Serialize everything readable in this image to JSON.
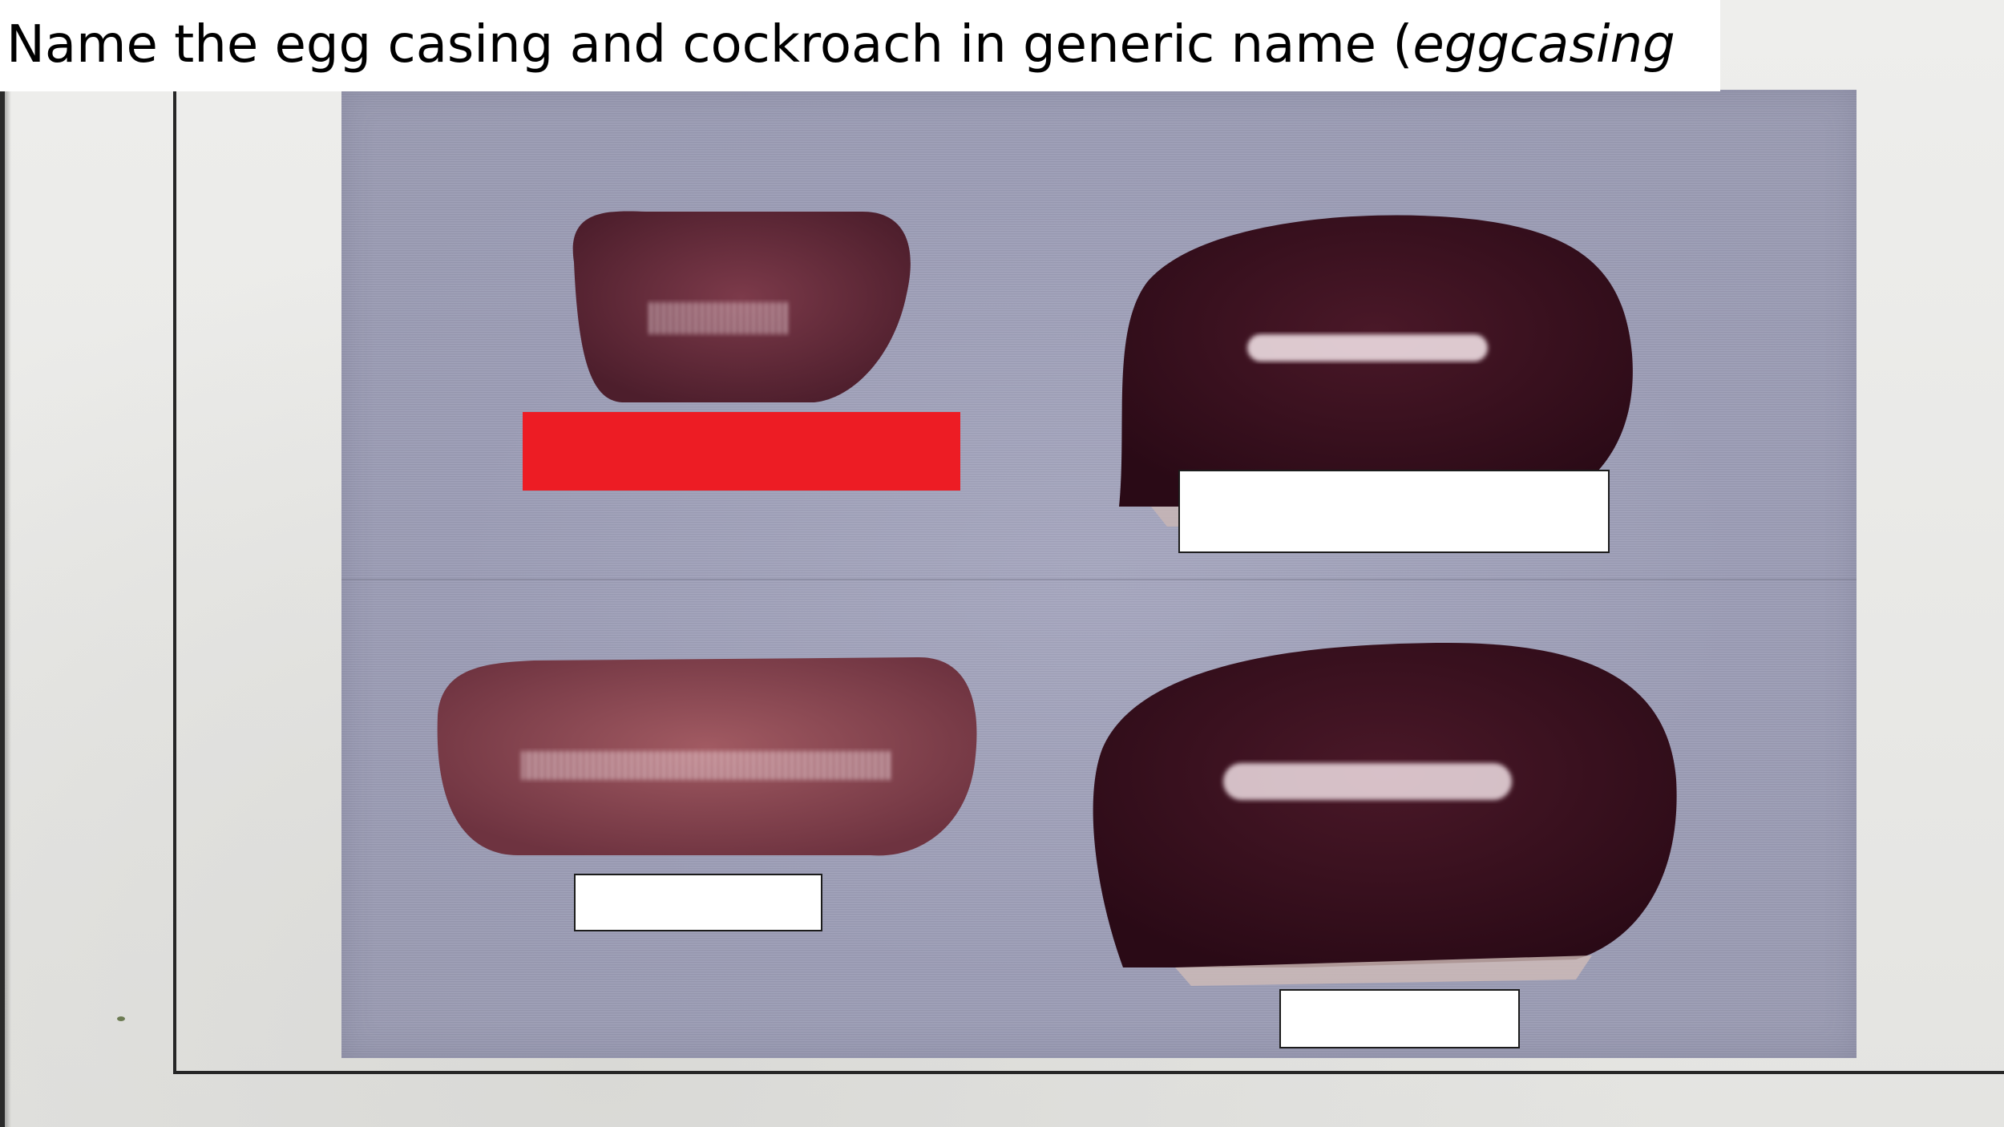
{
  "title": {
    "text": "Name the egg casing and cockroach in generic name (",
    "italic_text": "eggcasing"
  },
  "photo": {
    "specimens": [
      {
        "name": "egg-casing-small-top-left",
        "color": "#6a3040"
      },
      {
        "name": "egg-casing-large-top-right",
        "color": "#3a1220"
      },
      {
        "name": "egg-casing-long-bottom-left",
        "color": "#8a4650"
      },
      {
        "name": "egg-casing-large-bottom-right",
        "color": "#351020"
      }
    ]
  },
  "answer_boxes": [
    {
      "name": "answer-box-top-left",
      "value": "",
      "color": "#ed1c24"
    },
    {
      "name": "answer-box-top-right",
      "value": "",
      "color": "#ffffff"
    },
    {
      "name": "answer-box-bottom-left",
      "value": "",
      "color": "#ffffff"
    },
    {
      "name": "answer-box-bottom-right",
      "value": "",
      "color": "#ffffff"
    }
  ]
}
